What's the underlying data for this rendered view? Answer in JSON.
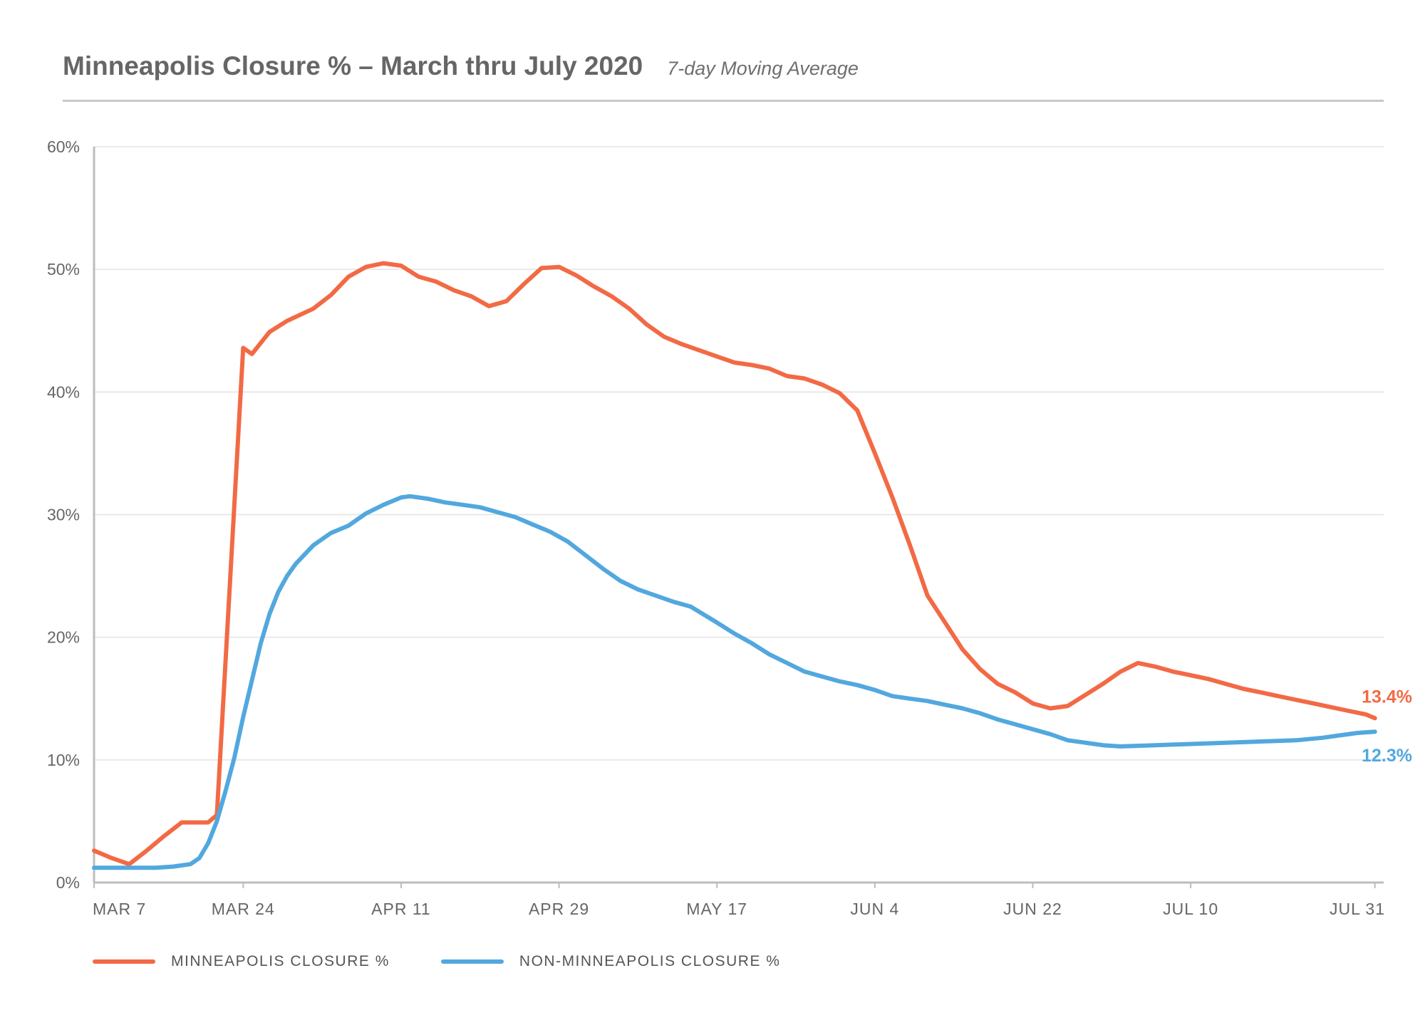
{
  "title": "Minneapolis Closure % – March thru July 2020",
  "subtitle": "7-day Moving Average",
  "colors": {
    "minneapolis": "#f26a45",
    "non_minneapolis": "#52a8de",
    "grid": "#e3e3e3",
    "axis": "#bdbdbd"
  },
  "legend": [
    {
      "label": "MINNEAPOLIS CLOSURE %",
      "color": "#f26a45"
    },
    {
      "label": "NON-MINNEAPOLIS CLOSURE %",
      "color": "#52a8de"
    }
  ],
  "end_labels": {
    "minneapolis": "13.4%",
    "non_minneapolis": "12.3%"
  },
  "chart_data": {
    "type": "line",
    "title": "Minneapolis Closure % – March thru July 2020",
    "subtitle": "7-day Moving Average",
    "xlabel": "",
    "ylabel": "",
    "x_start": "2020-03-07",
    "x_end": "2020-08-01",
    "x_ticks": [
      {
        "label": "MAR 7",
        "date": "2020-03-07"
      },
      {
        "label": "MAR 24",
        "date": "2020-03-24"
      },
      {
        "label": "APR 11",
        "date": "2020-04-11"
      },
      {
        "label": "APR 29",
        "date": "2020-04-29"
      },
      {
        "label": "MAY 17",
        "date": "2020-05-17"
      },
      {
        "label": "JUN 4",
        "date": "2020-06-04"
      },
      {
        "label": "JUN 22",
        "date": "2020-06-22"
      },
      {
        "label": "JUL 10",
        "date": "2020-07-10"
      },
      {
        "label": "JUL 31",
        "date": "2020-07-31"
      }
    ],
    "y_ticks": [
      "0%",
      "10%",
      "20%",
      "30%",
      "40%",
      "50%",
      "60%"
    ],
    "ylim": [
      0,
      60
    ],
    "grid": "horizontal",
    "legend_position": "bottom-left",
    "series": [
      {
        "name": "MINNEAPOLIS CLOSURE %",
        "color": "#f26a45",
        "points": [
          [
            "2020-03-07",
            2.6
          ],
          [
            "2020-03-09",
            2.0
          ],
          [
            "2020-03-11",
            1.5
          ],
          [
            "2020-03-13",
            2.6
          ],
          [
            "2020-03-15",
            3.8
          ],
          [
            "2020-03-17",
            4.9
          ],
          [
            "2020-03-20",
            4.9
          ],
          [
            "2020-03-21",
            5.5
          ],
          [
            "2020-03-24",
            43.6
          ],
          [
            "2020-03-25",
            43.1
          ],
          [
            "2020-03-27",
            44.9
          ],
          [
            "2020-03-29",
            45.8
          ],
          [
            "2020-04-01",
            46.8
          ],
          [
            "2020-04-03",
            47.9
          ],
          [
            "2020-04-05",
            49.4
          ],
          [
            "2020-04-07",
            50.2
          ],
          [
            "2020-04-09",
            50.5
          ],
          [
            "2020-04-11",
            50.3
          ],
          [
            "2020-04-13",
            49.4
          ],
          [
            "2020-04-15",
            49.0
          ],
          [
            "2020-04-17",
            48.3
          ],
          [
            "2020-04-19",
            47.8
          ],
          [
            "2020-04-21",
            47.0
          ],
          [
            "2020-04-23",
            47.4
          ],
          [
            "2020-04-25",
            48.8
          ],
          [
            "2020-04-27",
            50.1
          ],
          [
            "2020-04-29",
            50.2
          ],
          [
            "2020-05-01",
            49.5
          ],
          [
            "2020-05-03",
            48.6
          ],
          [
            "2020-05-05",
            47.8
          ],
          [
            "2020-05-07",
            46.8
          ],
          [
            "2020-05-09",
            45.5
          ],
          [
            "2020-05-11",
            44.5
          ],
          [
            "2020-05-13",
            43.9
          ],
          [
            "2020-05-15",
            43.4
          ],
          [
            "2020-05-17",
            42.9
          ],
          [
            "2020-05-19",
            42.4
          ],
          [
            "2020-05-21",
            42.2
          ],
          [
            "2020-05-23",
            41.9
          ],
          [
            "2020-05-25",
            41.3
          ],
          [
            "2020-05-27",
            41.1
          ],
          [
            "2020-05-29",
            40.6
          ],
          [
            "2020-05-31",
            39.9
          ],
          [
            "2020-06-02",
            38.5
          ],
          [
            "2020-06-04",
            35.0
          ],
          [
            "2020-06-06",
            31.4
          ],
          [
            "2020-06-08",
            27.5
          ],
          [
            "2020-06-10",
            23.4
          ],
          [
            "2020-06-12",
            21.2
          ],
          [
            "2020-06-14",
            19.0
          ],
          [
            "2020-06-16",
            17.4
          ],
          [
            "2020-06-18",
            16.2
          ],
          [
            "2020-06-20",
            15.5
          ],
          [
            "2020-06-22",
            14.6
          ],
          [
            "2020-06-24",
            14.2
          ],
          [
            "2020-06-26",
            14.4
          ],
          [
            "2020-06-28",
            15.3
          ],
          [
            "2020-06-30",
            16.2
          ],
          [
            "2020-07-02",
            17.2
          ],
          [
            "2020-07-04",
            17.9
          ],
          [
            "2020-07-06",
            17.6
          ],
          [
            "2020-07-08",
            17.2
          ],
          [
            "2020-07-10",
            16.9
          ],
          [
            "2020-07-12",
            16.6
          ],
          [
            "2020-07-14",
            16.2
          ],
          [
            "2020-07-16",
            15.8
          ],
          [
            "2020-07-18",
            15.5
          ],
          [
            "2020-07-20",
            15.2
          ],
          [
            "2020-07-22",
            14.9
          ],
          [
            "2020-07-24",
            14.6
          ],
          [
            "2020-07-26",
            14.3
          ],
          [
            "2020-07-28",
            14.0
          ],
          [
            "2020-07-30",
            13.7
          ],
          [
            "2020-07-31",
            13.4
          ]
        ]
      },
      {
        "name": "NON-MINNEAPOLIS CLOSURE %",
        "color": "#52a8de",
        "points": [
          [
            "2020-03-07",
            1.2
          ],
          [
            "2020-03-10",
            1.2
          ],
          [
            "2020-03-14",
            1.2
          ],
          [
            "2020-03-16",
            1.3
          ],
          [
            "2020-03-18",
            1.5
          ],
          [
            "2020-03-19",
            2.0
          ],
          [
            "2020-03-20",
            3.2
          ],
          [
            "2020-03-21",
            5.0
          ],
          [
            "2020-03-22",
            7.5
          ],
          [
            "2020-03-23",
            10.2
          ],
          [
            "2020-03-24",
            13.5
          ],
          [
            "2020-03-25",
            16.5
          ],
          [
            "2020-03-26",
            19.5
          ],
          [
            "2020-03-27",
            21.9
          ],
          [
            "2020-03-28",
            23.7
          ],
          [
            "2020-03-29",
            25.0
          ],
          [
            "2020-03-30",
            26.0
          ],
          [
            "2020-04-01",
            27.5
          ],
          [
            "2020-04-03",
            28.5
          ],
          [
            "2020-04-05",
            29.1
          ],
          [
            "2020-04-07",
            30.1
          ],
          [
            "2020-04-09",
            30.8
          ],
          [
            "2020-04-11",
            31.4
          ],
          [
            "2020-04-12",
            31.5
          ],
          [
            "2020-04-14",
            31.3
          ],
          [
            "2020-04-16",
            31.0
          ],
          [
            "2020-04-18",
            30.8
          ],
          [
            "2020-04-20",
            30.6
          ],
          [
            "2020-04-22",
            30.2
          ],
          [
            "2020-04-24",
            29.8
          ],
          [
            "2020-04-26",
            29.2
          ],
          [
            "2020-04-28",
            28.6
          ],
          [
            "2020-04-30",
            27.8
          ],
          [
            "2020-05-02",
            26.7
          ],
          [
            "2020-05-04",
            25.6
          ],
          [
            "2020-05-06",
            24.6
          ],
          [
            "2020-05-08",
            23.9
          ],
          [
            "2020-05-10",
            23.4
          ],
          [
            "2020-05-12",
            22.9
          ],
          [
            "2020-05-14",
            22.5
          ],
          [
            "2020-05-17",
            21.2
          ],
          [
            "2020-05-19",
            20.3
          ],
          [
            "2020-05-21",
            19.5
          ],
          [
            "2020-05-23",
            18.6
          ],
          [
            "2020-05-25",
            17.9
          ],
          [
            "2020-05-27",
            17.2
          ],
          [
            "2020-05-29",
            16.8
          ],
          [
            "2020-05-31",
            16.4
          ],
          [
            "2020-06-02",
            16.1
          ],
          [
            "2020-06-04",
            15.7
          ],
          [
            "2020-06-06",
            15.2
          ],
          [
            "2020-06-08",
            15.0
          ],
          [
            "2020-06-10",
            14.8
          ],
          [
            "2020-06-12",
            14.5
          ],
          [
            "2020-06-14",
            14.2
          ],
          [
            "2020-06-16",
            13.8
          ],
          [
            "2020-06-18",
            13.3
          ],
          [
            "2020-06-20",
            12.9
          ],
          [
            "2020-06-22",
            12.5
          ],
          [
            "2020-06-24",
            12.1
          ],
          [
            "2020-06-26",
            11.6
          ],
          [
            "2020-06-28",
            11.4
          ],
          [
            "2020-06-30",
            11.2
          ],
          [
            "2020-07-02",
            11.1
          ],
          [
            "2020-07-06",
            11.2
          ],
          [
            "2020-07-10",
            11.3
          ],
          [
            "2020-07-14",
            11.4
          ],
          [
            "2020-07-18",
            11.5
          ],
          [
            "2020-07-22",
            11.6
          ],
          [
            "2020-07-25",
            11.8
          ],
          [
            "2020-07-27",
            12.0
          ],
          [
            "2020-07-29",
            12.2
          ],
          [
            "2020-07-31",
            12.3
          ]
        ]
      }
    ]
  }
}
